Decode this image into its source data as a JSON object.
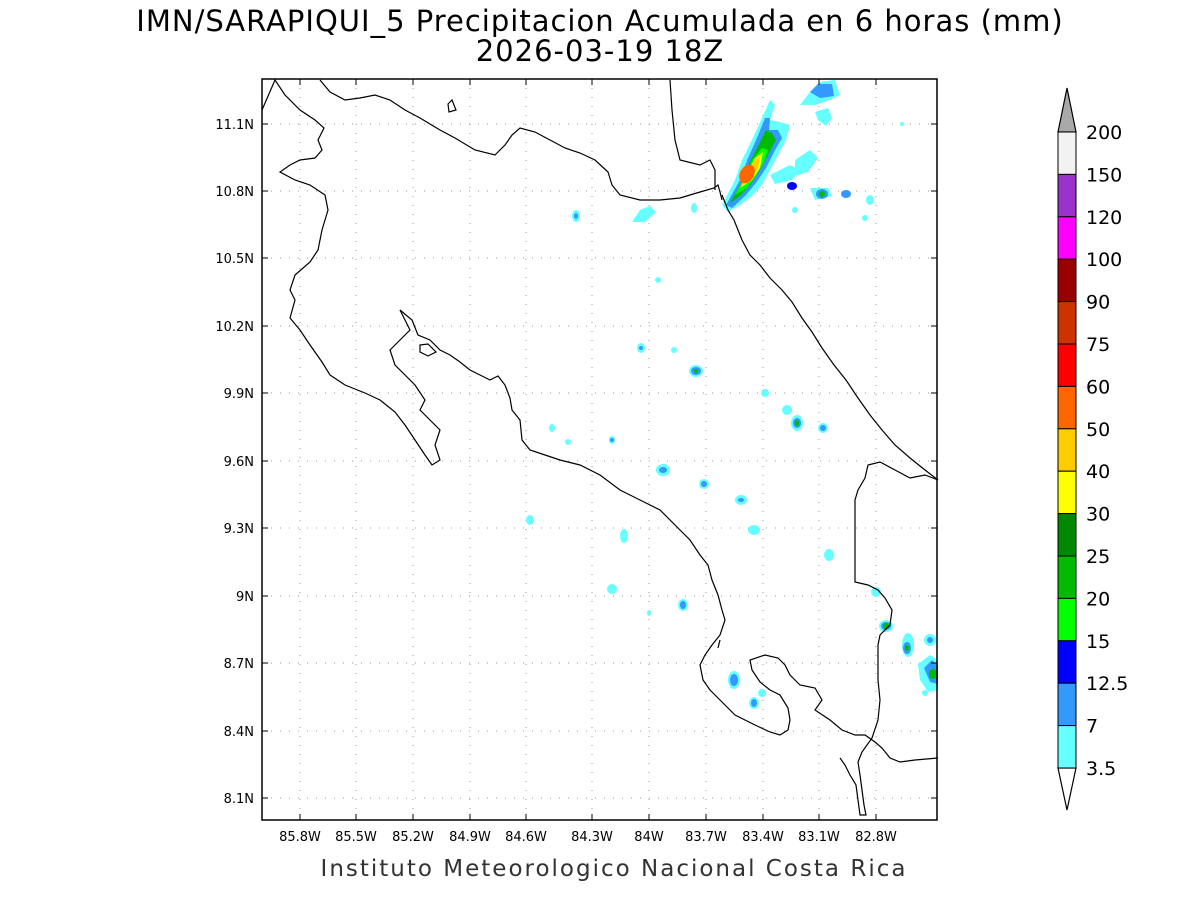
{
  "title": {
    "line1": "IMN/SARAPIQUI_5 Precipitacion Acumulada en 6 horas (mm)",
    "line2": "2026-03-19 18Z"
  },
  "footer": "Instituto Meteorologico Nacional Costa Rica",
  "map": {
    "lon_range": [
      -86.0,
      -83.0
    ],
    "lat_range": [
      8.0,
      11.3
    ],
    "lon_ticks": [
      "85.8W",
      "85.5W",
      "85.2W",
      "84.9W",
      "84.6W",
      "84.3W",
      "84W",
      "83.7W",
      "83.4W",
      "83.1W",
      "82.8W"
    ],
    "lat_ticks": [
      "11.1N",
      "10.8N",
      "10.5N",
      "10.2N",
      "9.9N",
      "9.6N",
      "9.3N",
      "9N",
      "8.7N",
      "8.4N",
      "8.1N"
    ]
  },
  "colorbar": {
    "levels": [
      "200",
      "150",
      "120",
      "100",
      "90",
      "75",
      "60",
      "50",
      "40",
      "30",
      "25",
      "20",
      "15",
      "12.5",
      "7",
      "3.5"
    ],
    "colors": [
      "#a9a9a9",
      "#f2f2f2",
      "#9933cc",
      "#ff00ff",
      "#990000",
      "#cc3300",
      "#ff0000",
      "#ff6600",
      "#ffcc00",
      "#ffff00",
      "#008800",
      "#00bb00",
      "#00ff00",
      "#0000ff",
      "#3399ff",
      "#66ffff"
    ]
  },
  "precip_colors": {
    "c35": "#66ffff",
    "c7": "#3399ff",
    "c125": "#0000ff",
    "c15": "#00ff00",
    "c20": "#00bb00",
    "c30": "#ffff00",
    "c40": "#ffcc00",
    "c50": "#ff6600"
  }
}
